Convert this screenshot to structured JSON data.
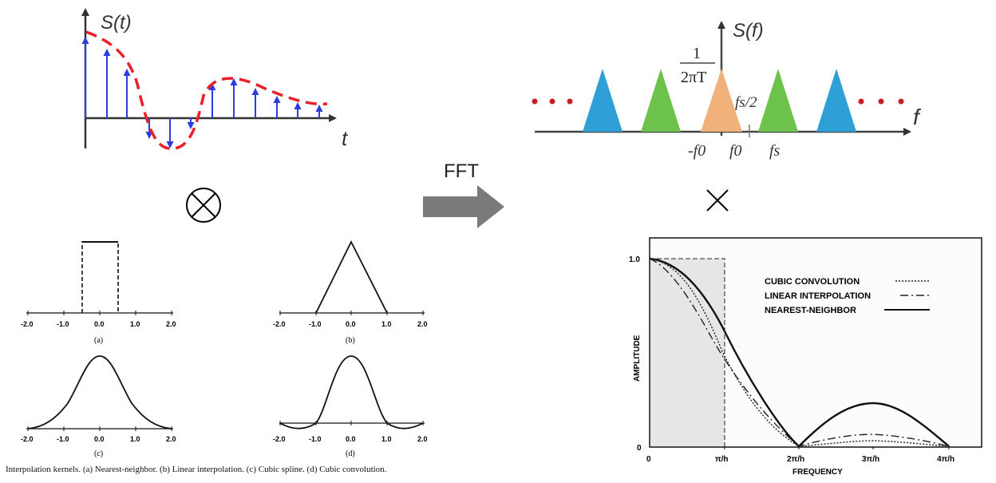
{
  "time_signal": {
    "ylabel": "S(t)",
    "xlabel": "t"
  },
  "spectrum": {
    "ylabel": "S(f)",
    "xlabel": "f",
    "amp_num": "1",
    "amp_den": "2πT",
    "half_fs": "fs/2",
    "tick_neg_f0": "-f0",
    "tick_f0": "f0",
    "tick_fs": "fs",
    "colors": {
      "blue": "#2f9fd8",
      "green": "#6cc24a",
      "orange": "#f0b27a",
      "red_dots": "#c81e1e"
    }
  },
  "arrow_label": "FFT",
  "convolution_symbol": "⊗",
  "multiply_symbol": "×",
  "kernels": {
    "ticks_wide": [
      "-2.0",
      "-1.0",
      "0.0",
      "1.0",
      "2.0"
    ],
    "ticks_b": [
      "-2.0",
      "-1.0",
      "0.0",
      "1.0",
      "2.0"
    ],
    "label_a": "(a)",
    "label_b": "(b)",
    "label_c": "(c)",
    "label_d": "(d)",
    "caption": "Interpolation kernels. (a) Nearest-neighbor. (b) Linear interpolation. (c) Cubic spline. (d) Cubic convolution."
  },
  "freq_plot": {
    "y_max": "1.0",
    "y_min": "0",
    "x0": "0",
    "x_ticks": [
      "π/h",
      "2π/h",
      "3π/h",
      "4π/h"
    ],
    "ylabel": "AMPLITUDE",
    "xlabel": "FREQUENCY",
    "legend": [
      "CUBIC CONVOLUTION",
      "LINEAR INTERPOLATION",
      "NEAREST-NEIGHBOR"
    ]
  }
}
